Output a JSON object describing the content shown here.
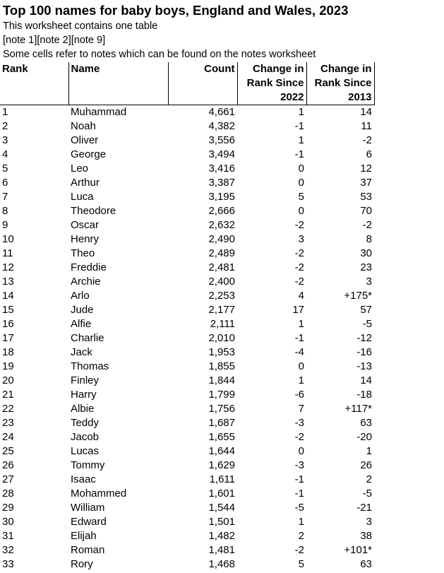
{
  "title": "Top 100 names for baby boys, England and Wales, 2023",
  "notes": [
    "This worksheet contains one table",
    "[note 1][note 2][note 9]",
    "Some cells refer to notes which can be found on the notes worksheet"
  ],
  "table": {
    "headers": [
      "Rank",
      "Name",
      "Count",
      "Change in Rank Since 2022",
      "Change in Rank Since 2013"
    ],
    "rows": [
      [
        "1",
        "Muhammad",
        "4,661",
        "1",
        "14"
      ],
      [
        "2",
        "Noah",
        "4,382",
        "-1",
        "11"
      ],
      [
        "3",
        "Oliver",
        "3,556",
        "1",
        "-2"
      ],
      [
        "4",
        "George",
        "3,494",
        "-1",
        "6"
      ],
      [
        "5",
        "Leo",
        "3,416",
        "0",
        "12"
      ],
      [
        "6",
        "Arthur",
        "3,387",
        "0",
        "37"
      ],
      [
        "7",
        "Luca",
        "3,195",
        "5",
        "53"
      ],
      [
        "8",
        "Theodore",
        "2,666",
        "0",
        "70"
      ],
      [
        "9",
        "Oscar",
        "2,632",
        "-2",
        "-2"
      ],
      [
        "10",
        "Henry",
        "2,490",
        "3",
        "8"
      ],
      [
        "11",
        "Theo",
        "2,489",
        "-2",
        "30"
      ],
      [
        "12",
        "Freddie",
        "2,481",
        "-2",
        "23"
      ],
      [
        "13",
        "Archie",
        "2,400",
        "-2",
        "3"
      ],
      [
        "14",
        "Arlo",
        "2,253",
        "4",
        "+175*"
      ],
      [
        "15",
        "Jude",
        "2,177",
        "17",
        "57"
      ],
      [
        "16",
        "Alfie",
        "2,111",
        "1",
        "-5"
      ],
      [
        "17",
        "Charlie",
        "2,010",
        "-1",
        "-12"
      ],
      [
        "18",
        "Jack",
        "1,953",
        "-4",
        "-16"
      ],
      [
        "19",
        "Thomas",
        "1,855",
        "0",
        "-13"
      ],
      [
        "20",
        "Finley",
        "1,844",
        "1",
        "14"
      ],
      [
        "21",
        "Harry",
        "1,799",
        "-6",
        "-18"
      ],
      [
        "22",
        "Albie",
        "1,756",
        "7",
        "+117*"
      ],
      [
        "23",
        "Teddy",
        "1,687",
        "-3",
        "63"
      ],
      [
        "24",
        "Jacob",
        "1,655",
        "-2",
        "-20"
      ],
      [
        "25",
        "Lucas",
        "1,644",
        "0",
        "1"
      ],
      [
        "26",
        "Tommy",
        "1,629",
        "-3",
        "26"
      ],
      [
        "27",
        "Isaac",
        "1,611",
        "-1",
        "2"
      ],
      [
        "28",
        "Mohammed",
        "1,601",
        "-1",
        "-5"
      ],
      [
        "29",
        "William",
        "1,544",
        "-5",
        "-21"
      ],
      [
        "30",
        "Edward",
        "1,501",
        "1",
        "3"
      ],
      [
        "31",
        "Elijah",
        "1,482",
        "2",
        "38"
      ],
      [
        "32",
        "Roman",
        "1,481",
        "-2",
        "+101*"
      ],
      [
        "33",
        "Rory",
        "1,468",
        "5",
        "63"
      ]
    ]
  }
}
